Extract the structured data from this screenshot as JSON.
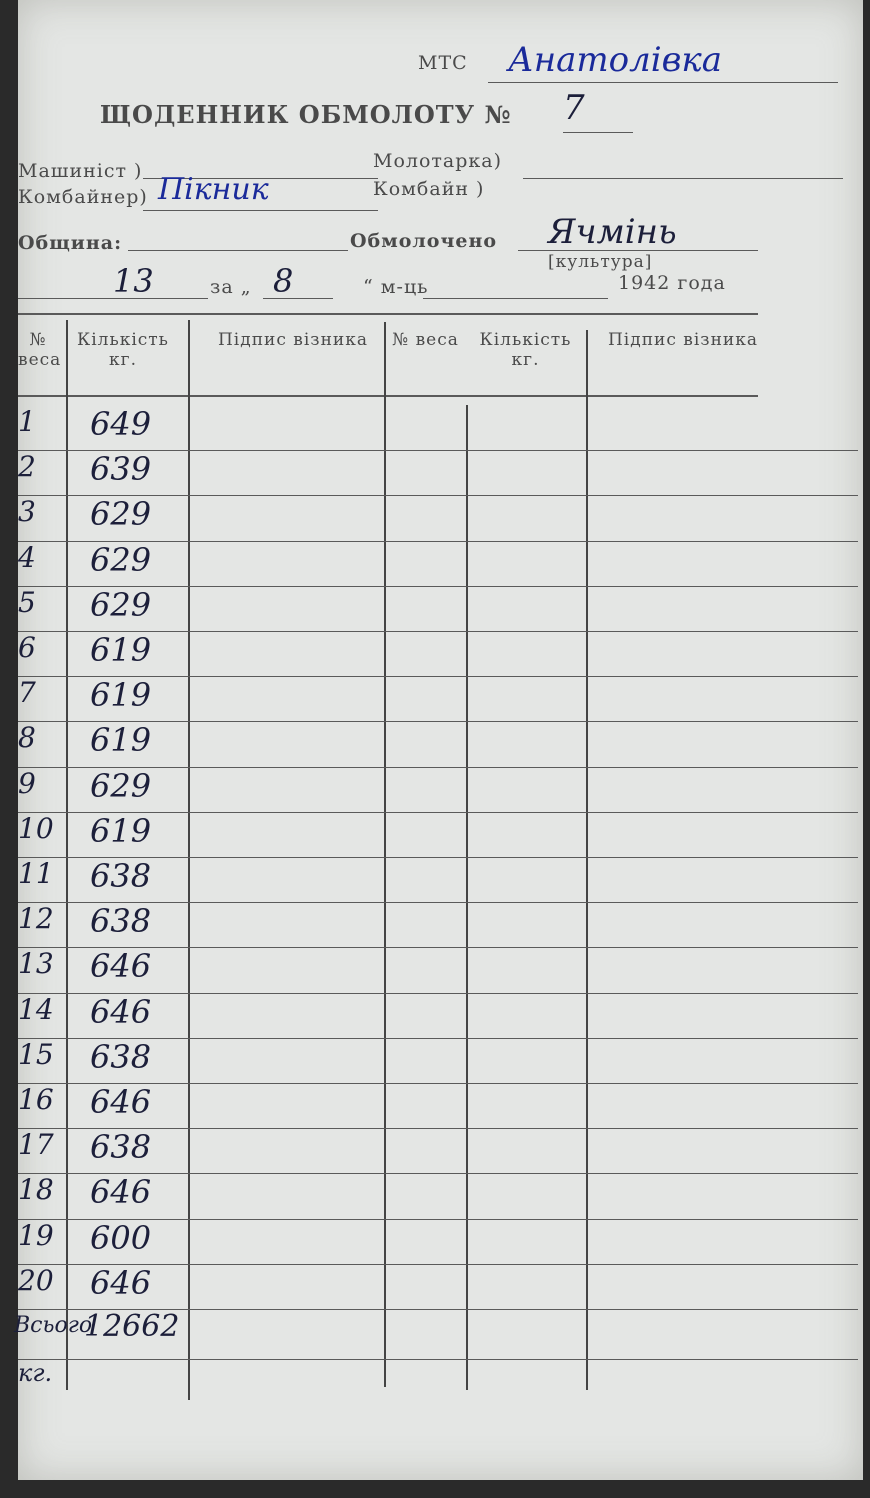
{
  "header": {
    "mts_label": "МТС",
    "mts": "Анатолівка",
    "title": "ЩОДЕННИК ОБМОЛОТУ №",
    "number": "7",
    "machinist": "Машиніст )",
    "combiner": "Комбайнер)",
    "combiner_name": "Пікник",
    "thresher": "Молотарка)",
    "combine": "Комбайн )",
    "community": "Община:",
    "threshed": "Обмолочено",
    "crop": "Ячмінь",
    "crop_label": "[культура]",
    "day": "13",
    "for": "за „",
    "month": "8",
    "month_label": "“ м-ць",
    "year": "1942 года"
  },
  "table": {
    "headers": [
      "№ веса",
      "Кількість кг.",
      "Підпис візника",
      "№ веса",
      "Кількість кг.",
      "Підпис візника"
    ],
    "rows": [
      [
        "1",
        "649"
      ],
      [
        "2",
        "639"
      ],
      [
        "3",
        "629"
      ],
      [
        "4",
        "629"
      ],
      [
        "5",
        "629"
      ],
      [
        "6",
        "619"
      ],
      [
        "7",
        "619"
      ],
      [
        "8",
        "619"
      ],
      [
        "9",
        "629"
      ],
      [
        "10",
        "619"
      ],
      [
        "11",
        "638"
      ],
      [
        "12",
        "638"
      ],
      [
        "13",
        "646"
      ],
      [
        "14",
        "646"
      ],
      [
        "15",
        "638"
      ],
      [
        "16",
        "646"
      ],
      [
        "17",
        "638"
      ],
      [
        "18",
        "646"
      ],
      [
        "19",
        "600"
      ],
      [
        "20",
        "646"
      ]
    ],
    "total_label": "Всього",
    "total": "12662",
    "unit": "кг."
  }
}
